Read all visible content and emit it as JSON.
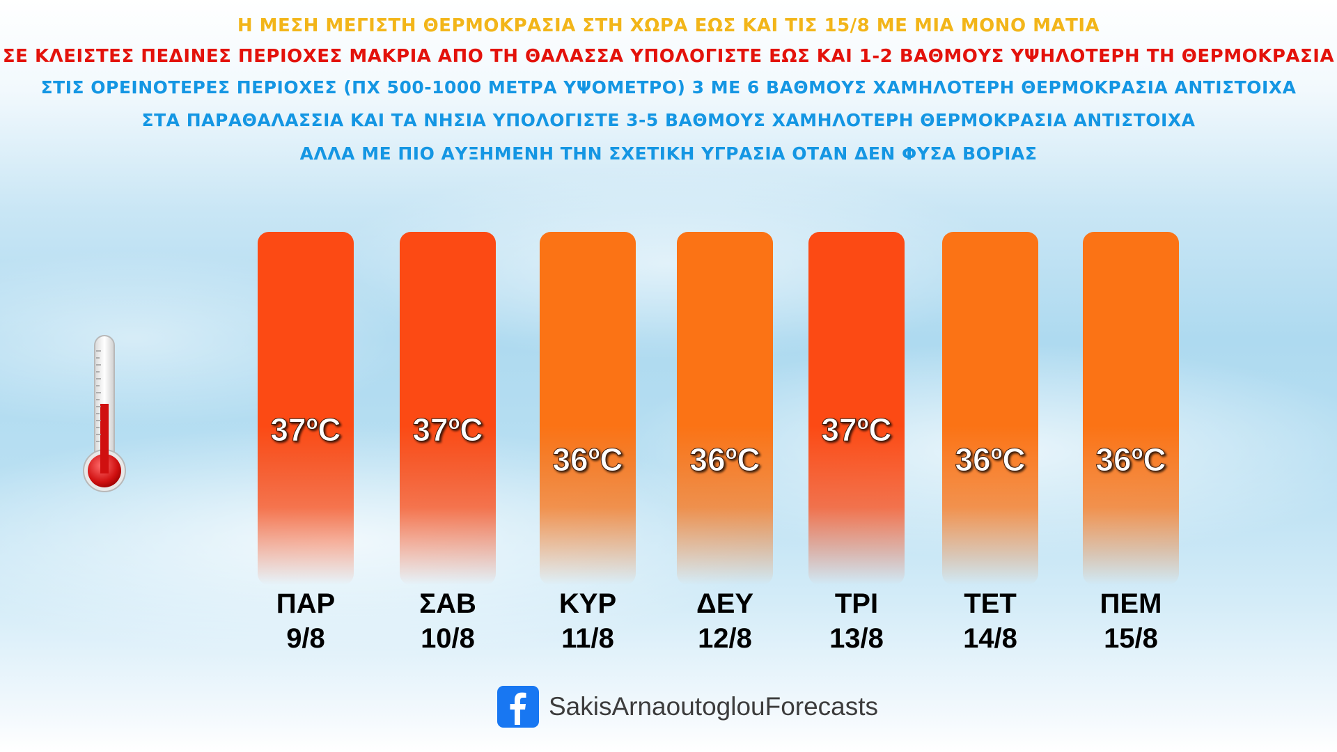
{
  "headlines": {
    "line1": "Η ΜΕΣΗ ΜΕΓΙΣΤΗ ΘΕΡΜΟΚΡΑΣΙΑ ΣΤΗ ΧΩΡΑ ΕΩΣ ΚΑΙ ΤΙΣ 15/8 ΜΕ ΜΙΑ ΜΟΝΟ ΜΑΤΙΑ",
    "line2": "ΣΕ ΚΛΕΙΣΤΕΣ ΠΕΔΙΝΕΣ ΠΕΡΙΟΧΕΣ ΜΑΚΡΙΑ ΑΠΟ ΤΗ ΘΑΛΑΣΣΑ ΥΠΟΛΟΓΙΣΤΕ ΕΩΣ ΚΑΙ 1-2 ΒΑΘΜΟΥΣ ΥΨΗΛΟΤΕΡΗ ΤΗ ΘΕΡΜΟΚΡΑΣΙΑ",
    "line3": "ΣΤΙΣ ΟΡΕΙΝΟΤΕΡΕΣ ΠΕΡΙΟΧΕΣ (ΠΧ 500-1000 ΜΕΤΡΑ ΥΨΟΜΕΤΡΟ) 3 ΜΕ 6 ΒΑΘΜΟΥΣ ΧΑΜΗΛΟΤΕΡΗ ΘΕΡΜΟΚΡΑΣΙΑ ΑΝΤΙΣΤΟΙΧΑ",
    "line4": "ΣΤΑ ΠΑΡΑΘΑΛΑΣΣΙΑ ΚΑΙ ΤΑ ΝΗΣΙΑ ΥΠΟΛΟΓΙΣΤΕ 3-5 ΒΑΘΜΟΥΣ ΧΑΜΗΛΟΤΕΡΗ ΘΕΡΜΟΚΡΑΣΙΑ ΑΝΤΙΣΤΟΙΧΑ",
    "line5": "ΑΛΛΑ ΜΕ ΠΙΟ ΑΥΞΗΜΕΝΗ ΤΗΝ ΣΧΕΤΙΚΗ ΥΓΡΑΣΙΑ ΟΤΑΝ ΔΕΝ ΦΥΣΑ ΒΟΡΙΑΣ"
  },
  "colors": {
    "headline_yellow": "#f2b519",
    "headline_red": "#e3120b",
    "headline_blue": "#1496e3",
    "bar_hot": "#fc4a14",
    "bar_warm": "#fb7315",
    "facebook_blue": "#1877f2"
  },
  "icons": {
    "thermometer": "thermometer-icon",
    "facebook": "facebook-icon"
  },
  "footer": {
    "facebook_name": "SakisArnaoutoglouForecasts"
  },
  "chart_data": {
    "type": "bar",
    "title": "Η ΜΕΣΗ ΜΕΓΙΣΤΗ ΘΕΡΜΟΚΡΑΣΙΑ ΣΤΗ ΧΩΡΑ ΕΩΣ ΚΑΙ ΤΙΣ 15/8 ΜΕ ΜΙΑ ΜΟΝΟ ΜΑΤΙΑ",
    "days": [
      "ΠΑΡ",
      "ΣΑΒ",
      "ΚΥΡ",
      "ΔΕΥ",
      "ΤΡΙ",
      "ΤΕΤ",
      "ΠΕΜ"
    ],
    "dates": [
      "9/8",
      "10/8",
      "11/8",
      "12/8",
      "13/8",
      "14/8",
      "15/8"
    ],
    "values": [
      37,
      37,
      36,
      36,
      37,
      36,
      36
    ],
    "unit": "ºC",
    "value_labels": [
      "37ºC",
      "37ºC",
      "36ºC",
      "36ºC",
      "37ºC",
      "36ºC",
      "36ºC"
    ],
    "grid": false,
    "legend": "none"
  }
}
